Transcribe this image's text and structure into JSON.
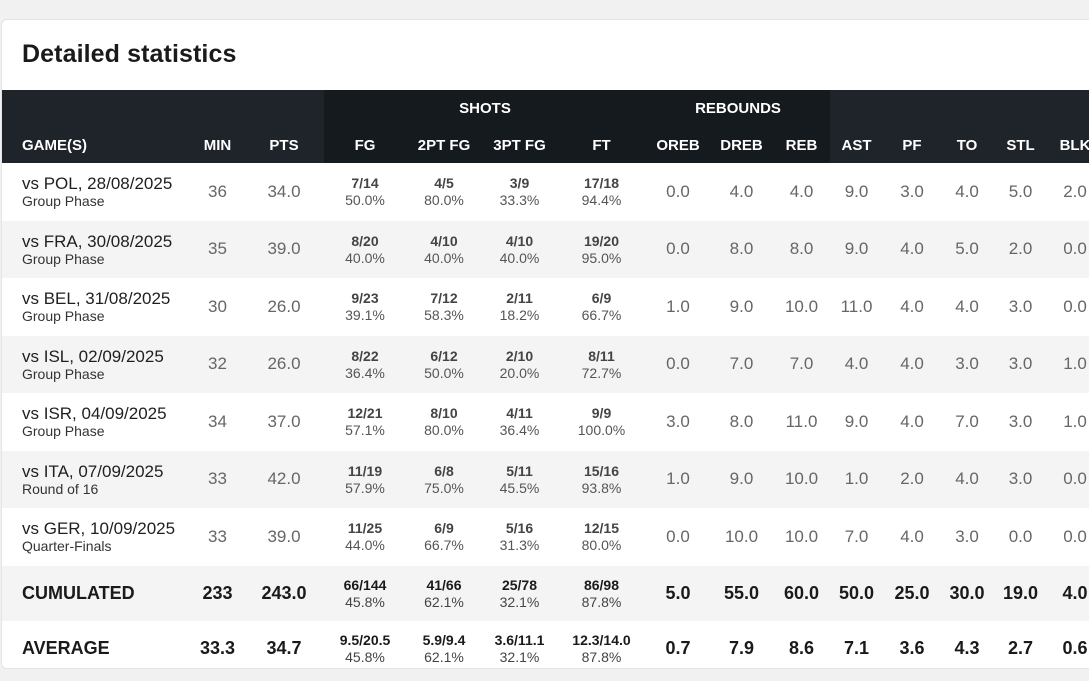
{
  "title": "Detailed statistics",
  "groups": {
    "shots": "SHOTS",
    "rebounds": "REBOUNDS"
  },
  "columns": [
    "GAME(S)",
    "MIN",
    "PTS",
    "FG",
    "2PT FG",
    "3PT FG",
    "FT",
    "OREB",
    "DREB",
    "REB",
    "AST",
    "PF",
    "TO",
    "STL",
    "BLK"
  ],
  "games": [
    {
      "game": "vs POL, 28/08/2025",
      "phase": "Group Phase",
      "min": "36",
      "pts": "34.0",
      "fg": {
        "m": "7/14",
        "p": "50.0%"
      },
      "fg2": {
        "m": "4/5",
        "p": "80.0%"
      },
      "fg3": {
        "m": "3/9",
        "p": "33.3%"
      },
      "ft": {
        "m": "17/18",
        "p": "94.4%"
      },
      "oreb": "0.0",
      "dreb": "4.0",
      "reb": "4.0",
      "ast": "9.0",
      "pf": "3.0",
      "to": "4.0",
      "stl": "5.0",
      "blk": "2.0"
    },
    {
      "game": "vs FRA, 30/08/2025",
      "phase": "Group Phase",
      "min": "35",
      "pts": "39.0",
      "fg": {
        "m": "8/20",
        "p": "40.0%"
      },
      "fg2": {
        "m": "4/10",
        "p": "40.0%"
      },
      "fg3": {
        "m": "4/10",
        "p": "40.0%"
      },
      "ft": {
        "m": "19/20",
        "p": "95.0%"
      },
      "oreb": "0.0",
      "dreb": "8.0",
      "reb": "8.0",
      "ast": "9.0",
      "pf": "4.0",
      "to": "5.0",
      "stl": "2.0",
      "blk": "0.0"
    },
    {
      "game": "vs BEL, 31/08/2025",
      "phase": "Group Phase",
      "min": "30",
      "pts": "26.0",
      "fg": {
        "m": "9/23",
        "p": "39.1%"
      },
      "fg2": {
        "m": "7/12",
        "p": "58.3%"
      },
      "fg3": {
        "m": "2/11",
        "p": "18.2%"
      },
      "ft": {
        "m": "6/9",
        "p": "66.7%"
      },
      "oreb": "1.0",
      "dreb": "9.0",
      "reb": "10.0",
      "ast": "11.0",
      "pf": "4.0",
      "to": "4.0",
      "stl": "3.0",
      "blk": "0.0"
    },
    {
      "game": "vs ISL, 02/09/2025",
      "phase": "Group Phase",
      "min": "32",
      "pts": "26.0",
      "fg": {
        "m": "8/22",
        "p": "36.4%"
      },
      "fg2": {
        "m": "6/12",
        "p": "50.0%"
      },
      "fg3": {
        "m": "2/10",
        "p": "20.0%"
      },
      "ft": {
        "m": "8/11",
        "p": "72.7%"
      },
      "oreb": "0.0",
      "dreb": "7.0",
      "reb": "7.0",
      "ast": "4.0",
      "pf": "4.0",
      "to": "3.0",
      "stl": "3.0",
      "blk": "1.0"
    },
    {
      "game": "vs ISR, 04/09/2025",
      "phase": "Group Phase",
      "min": "34",
      "pts": "37.0",
      "fg": {
        "m": "12/21",
        "p": "57.1%"
      },
      "fg2": {
        "m": "8/10",
        "p": "80.0%"
      },
      "fg3": {
        "m": "4/11",
        "p": "36.4%"
      },
      "ft": {
        "m": "9/9",
        "p": "100.0%"
      },
      "oreb": "3.0",
      "dreb": "8.0",
      "reb": "11.0",
      "ast": "9.0",
      "pf": "4.0",
      "to": "7.0",
      "stl": "3.0",
      "blk": "1.0"
    },
    {
      "game": "vs ITA, 07/09/2025",
      "phase": "Round of 16",
      "min": "33",
      "pts": "42.0",
      "fg": {
        "m": "11/19",
        "p": "57.9%"
      },
      "fg2": {
        "m": "6/8",
        "p": "75.0%"
      },
      "fg3": {
        "m": "5/11",
        "p": "45.5%"
      },
      "ft": {
        "m": "15/16",
        "p": "93.8%"
      },
      "oreb": "1.0",
      "dreb": "9.0",
      "reb": "10.0",
      "ast": "1.0",
      "pf": "2.0",
      "to": "4.0",
      "stl": "3.0",
      "blk": "0.0"
    },
    {
      "game": "vs GER, 10/09/2025",
      "phase": "Quarter-Finals",
      "min": "33",
      "pts": "39.0",
      "fg": {
        "m": "11/25",
        "p": "44.0%"
      },
      "fg2": {
        "m": "6/9",
        "p": "66.7%"
      },
      "fg3": {
        "m": "5/16",
        "p": "31.3%"
      },
      "ft": {
        "m": "12/15",
        "p": "80.0%"
      },
      "oreb": "0.0",
      "dreb": "10.0",
      "reb": "10.0",
      "ast": "7.0",
      "pf": "4.0",
      "to": "3.0",
      "stl": "0.0",
      "blk": "0.0"
    }
  ],
  "totals": [
    {
      "label": "CUMULATED",
      "min": "233",
      "pts": "243.0",
      "fg": {
        "m": "66/144",
        "p": "45.8%"
      },
      "fg2": {
        "m": "41/66",
        "p": "62.1%"
      },
      "fg3": {
        "m": "25/78",
        "p": "32.1%"
      },
      "ft": {
        "m": "86/98",
        "p": "87.8%"
      },
      "oreb": "5.0",
      "dreb": "55.0",
      "reb": "60.0",
      "ast": "50.0",
      "pf": "25.0",
      "to": "30.0",
      "stl": "19.0",
      "blk": "4.0"
    },
    {
      "label": "AVERAGE",
      "min": "33.3",
      "pts": "34.7",
      "fg": {
        "m": "9.5/20.5",
        "p": "45.8%"
      },
      "fg2": {
        "m": "5.9/9.4",
        "p": "62.1%"
      },
      "fg3": {
        "m": "3.6/11.1",
        "p": "32.1%"
      },
      "ft": {
        "m": "12.3/14.0",
        "p": "87.8%"
      },
      "oreb": "0.7",
      "dreb": "7.9",
      "reb": "8.6",
      "ast": "7.1",
      "pf": "3.6",
      "to": "4.3",
      "stl": "2.7",
      "blk": "0.6"
    }
  ]
}
